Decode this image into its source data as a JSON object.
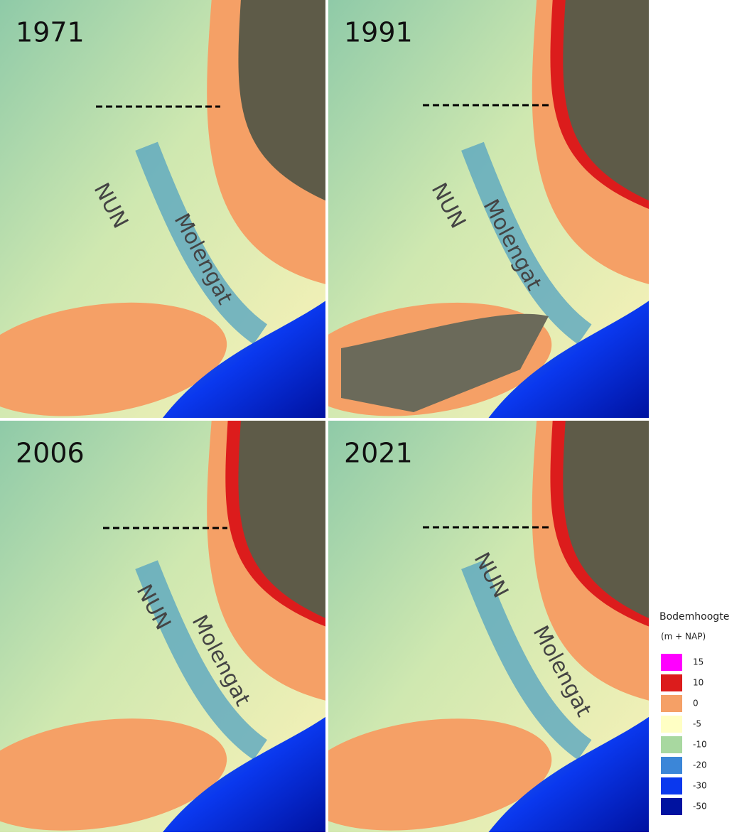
{
  "panels": [
    {
      "year": "1971",
      "labels": [
        "NUN",
        "Molengat"
      ]
    },
    {
      "year": "1991",
      "labels": [
        "NUN",
        "Molengat"
      ]
    },
    {
      "year": "2006",
      "labels": [
        "NUN",
        "Molengat"
      ]
    },
    {
      "year": "2021",
      "labels": [
        "NUN",
        "Molengat"
      ]
    }
  ],
  "legend": {
    "title": "Bodemhoogte",
    "unit": "(m + NAP)",
    "items": [
      {
        "label": "15",
        "color": "#ff00ff"
      },
      {
        "label": "10",
        "color": "#dc1c1c"
      },
      {
        "label": "0",
        "color": "#f5a066"
      },
      {
        "label": "-5",
        "color": "#ffffc4"
      },
      {
        "label": "-10",
        "color": "#a8d8a0"
      },
      {
        "label": "-20",
        "color": "#3b86d8"
      },
      {
        "label": "-30",
        "color": "#0a38ee"
      },
      {
        "label": "-50",
        "color": "#0012a0"
      }
    ]
  }
}
